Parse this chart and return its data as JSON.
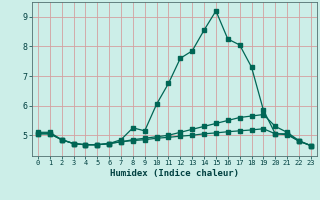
{
  "xlabel": "Humidex (Indice chaleur)",
  "bg_color": "#cceee8",
  "grid_color": "#d4a0a0",
  "line_color": "#006655",
  "xlim": [
    -0.5,
    23.5
  ],
  "ylim": [
    4.3,
    9.5
  ],
  "xticks": [
    0,
    1,
    2,
    3,
    4,
    5,
    6,
    7,
    8,
    9,
    10,
    11,
    12,
    13,
    14,
    15,
    16,
    17,
    18,
    19,
    20,
    21,
    22,
    23
  ],
  "yticks": [
    5,
    6,
    7,
    8,
    9
  ],
  "line1_x": [
    0,
    1,
    2,
    3,
    4,
    5,
    6,
    7,
    8,
    9,
    10,
    11,
    12,
    13,
    14,
    15,
    16,
    17,
    18,
    19,
    20,
    21,
    22,
    23
  ],
  "line1_y": [
    5.1,
    5.1,
    4.85,
    4.72,
    4.68,
    4.68,
    4.72,
    4.85,
    5.25,
    5.15,
    6.05,
    6.75,
    7.6,
    7.85,
    8.55,
    9.2,
    8.25,
    8.05,
    7.3,
    5.85,
    5.05,
    5.05,
    4.8,
    4.65
  ],
  "line2_x": [
    0,
    1,
    2,
    3,
    4,
    5,
    6,
    7,
    8,
    9,
    10,
    11,
    12,
    13,
    14,
    15,
    16,
    17,
    18,
    19,
    20,
    21,
    22,
    23
  ],
  "line2_y": [
    5.05,
    5.05,
    4.85,
    4.72,
    4.68,
    4.68,
    4.72,
    4.78,
    4.85,
    4.9,
    4.95,
    5.0,
    5.1,
    5.2,
    5.3,
    5.4,
    5.5,
    5.6,
    5.65,
    5.7,
    5.3,
    5.1,
    4.82,
    4.65
  ],
  "line3_x": [
    0,
    1,
    2,
    3,
    4,
    5,
    6,
    7,
    8,
    9,
    10,
    11,
    12,
    13,
    14,
    15,
    16,
    17,
    18,
    19,
    20,
    21,
    22,
    23
  ],
  "line3_y": [
    5.05,
    5.05,
    4.85,
    4.72,
    4.68,
    4.68,
    4.72,
    4.78,
    4.82,
    4.85,
    4.9,
    4.93,
    4.97,
    5.0,
    5.05,
    5.08,
    5.12,
    5.15,
    5.18,
    5.22,
    5.05,
    5.02,
    4.8,
    4.65
  ]
}
